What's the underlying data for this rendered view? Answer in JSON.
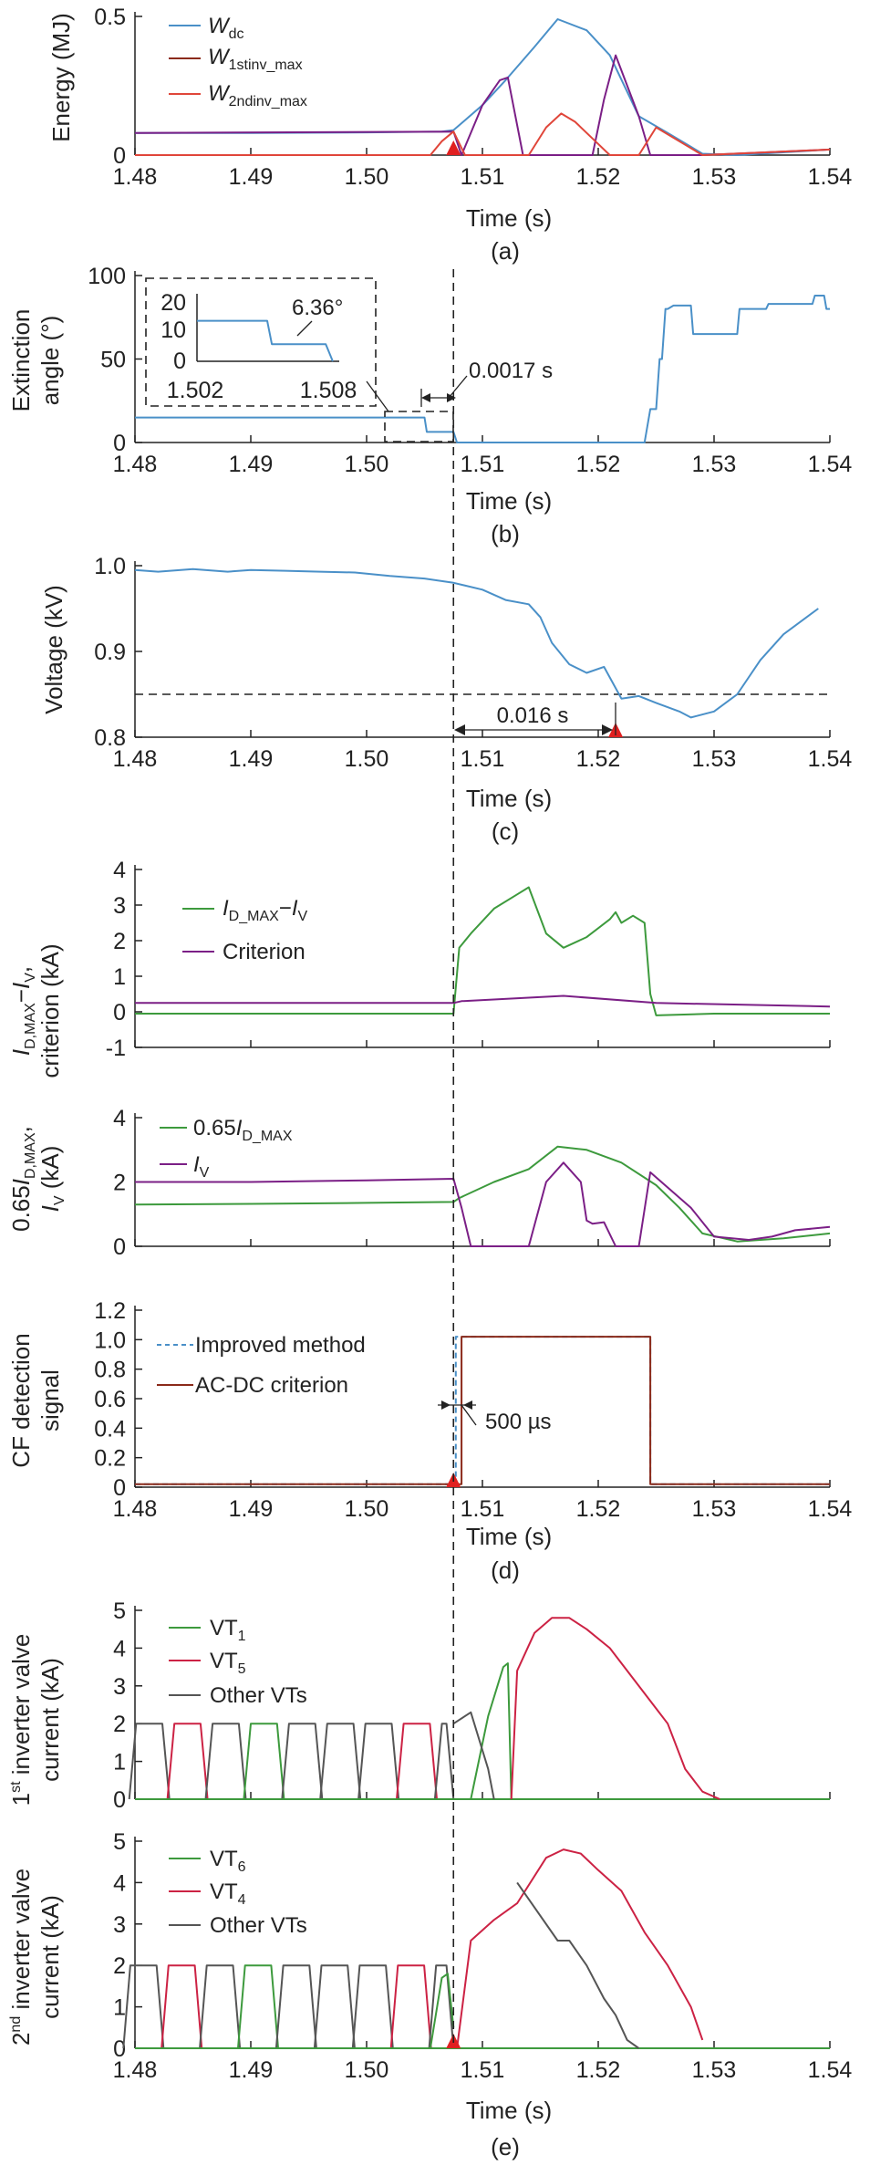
{
  "time_ticks": [
    "1.48",
    "1.49",
    "1.50",
    "1.51",
    "1.52",
    "1.53",
    "1.54"
  ],
  "time_label": "Time (s)",
  "colors": {
    "blue": "#4a90c8",
    "darkred": "#8b2a1a",
    "red": "#e0463a",
    "purple": "#7b1f86",
    "green": "#3d9a3d",
    "crimson": "#cc2244",
    "gray": "#555555",
    "marker": "#e02020"
  },
  "chart_data": [
    {
      "id": "a",
      "type": "line",
      "caption": "(a)",
      "ylabel": "Energy (MJ)",
      "xlabel": "Time (s)",
      "xlim": [
        1.48,
        1.54
      ],
      "ylim": [
        0,
        0.5
      ],
      "yticks": [
        "0",
        "0.5"
      ],
      "series": [
        {
          "name": "W",
          "sub": "dc",
          "color": "#4a90c8",
          "x": [
            1.48,
            1.49,
            1.5,
            1.5065,
            1.5075,
            1.51,
            1.512,
            1.5145,
            1.5165,
            1.519,
            1.521,
            1.5235,
            1.526,
            1.528,
            1.529,
            1.532,
            1.54
          ],
          "y": [
            0.08,
            0.08,
            0.082,
            0.085,
            0.09,
            0.18,
            0.27,
            0.39,
            0.49,
            0.45,
            0.36,
            0.14,
            0.08,
            0.03,
            0.005,
            0.0,
            0.02
          ]
        },
        {
          "name": "W",
          "sub": "1stinv_max",
          "color": "#7b1f86",
          "x": [
            1.48,
            1.5075,
            1.5082,
            1.51,
            1.5115,
            1.5122,
            1.5135,
            1.518,
            1.5195,
            1.5205,
            1.5215,
            1.5235,
            1.5245,
            1.526,
            1.529,
            1.54
          ],
          "y": [
            0.08,
            0.085,
            0.0,
            0.18,
            0.27,
            0.28,
            0.0,
            0.0,
            0.0,
            0.2,
            0.36,
            0.14,
            0.0,
            0.0,
            0.0,
            0.02
          ]
        },
        {
          "name": "W",
          "sub": "2ndinv_max",
          "color": "#e0463a",
          "x": [
            1.48,
            1.5055,
            1.5065,
            1.5075,
            1.5085,
            1.514,
            1.5155,
            1.5168,
            1.518,
            1.5195,
            1.521,
            1.5235,
            1.525,
            1.529,
            1.54
          ],
          "y": [
            0.0,
            0.0,
            0.05,
            0.085,
            0.0,
            0.0,
            0.1,
            0.15,
            0.12,
            0.06,
            0.0,
            0.0,
            0.1,
            0.0,
            0.02
          ]
        }
      ],
      "legend": [
        "W_dc",
        "W_1stinv_max",
        "W_2ndinv_max"
      ],
      "marker_x": 1.5075
    },
    {
      "id": "b",
      "type": "line",
      "caption": "(b)",
      "ylabel": [
        "Extinction",
        "angle (°)"
      ],
      "xlabel": "Time (s)",
      "xlim": [
        1.48,
        1.54
      ],
      "ylim": [
        0,
        100
      ],
      "yticks": [
        "0",
        "50",
        "100"
      ],
      "series": [
        {
          "name": "Extinction angle",
          "color": "#4a90c8",
          "x": [
            1.48,
            1.505,
            1.5052,
            1.5075,
            1.5078,
            1.524,
            1.5245,
            1.525,
            1.5253,
            1.5255,
            1.5258,
            1.526,
            1.5265,
            1.528,
            1.5282,
            1.532,
            1.5322,
            1.5345,
            1.5347,
            1.5385,
            1.5387,
            1.5395,
            1.5397,
            1.54
          ],
          "y": [
            15,
            15,
            6.36,
            6.36,
            0,
            0,
            20,
            20,
            50,
            50,
            80,
            80,
            82,
            82,
            65,
            65,
            80,
            80,
            83,
            83,
            88,
            88,
            80,
            80
          ]
        }
      ],
      "inset": {
        "yticks": [
          "20",
          "10",
          "0"
        ],
        "xticks": [
          "1.502",
          "1.508"
        ],
        "x": [
          1.502,
          1.505,
          1.5052,
          1.5075,
          1.5078
        ],
        "y": [
          15,
          15,
          6.36,
          6.36,
          0
        ],
        "label": "6.36°"
      },
      "annotation": "0.0017 s"
    },
    {
      "id": "c",
      "type": "line",
      "caption": "(c)",
      "ylabel": "Voltage (kV)",
      "xlabel": "Time (s)",
      "xlim": [
        1.48,
        1.54
      ],
      "ylim": [
        0.8,
        1.0
      ],
      "yticks": [
        "0.8",
        "0.9",
        "1.0"
      ],
      "threshold": 0.85,
      "series": [
        {
          "name": "Voltage",
          "color": "#4a90c8",
          "x": [
            1.48,
            1.482,
            1.485,
            1.488,
            1.49,
            1.493,
            1.496,
            1.499,
            1.502,
            1.505,
            1.5075,
            1.51,
            1.512,
            1.514,
            1.515,
            1.516,
            1.5175,
            1.519,
            1.5205,
            1.522,
            1.5235,
            1.525,
            1.527,
            1.528,
            1.53,
            1.532,
            1.534,
            1.536,
            1.539
          ],
          "y": [
            0.995,
            0.993,
            0.996,
            0.993,
            0.995,
            0.994,
            0.993,
            0.992,
            0.988,
            0.985,
            0.98,
            0.972,
            0.96,
            0.955,
            0.94,
            0.91,
            0.885,
            0.875,
            0.882,
            0.845,
            0.848,
            0.84,
            0.83,
            0.823,
            0.83,
            0.85,
            0.89,
            0.92,
            0.95
          ]
        }
      ],
      "annotation": "0.016 s",
      "marker_x": 1.5215
    },
    {
      "id": "d1",
      "type": "line",
      "ylabel": [
        "I",
        "criterion (kA)"
      ],
      "xlabel": "",
      "xlim": [
        1.48,
        1.54
      ],
      "ylim": [
        -1,
        4
      ],
      "yticks": [
        "-1",
        "0",
        "1",
        "2",
        "3",
        "4"
      ],
      "series": [
        {
          "name": "I_D_MAX−I_V",
          "color": "#3d9a3d",
          "x": [
            1.48,
            1.49,
            1.5,
            1.5075,
            1.508,
            1.509,
            1.511,
            1.513,
            1.514,
            1.5155,
            1.517,
            1.519,
            1.521,
            1.5215,
            1.522,
            1.523,
            1.524,
            1.5245,
            1.525,
            1.53,
            1.54
          ],
          "y": [
            -0.05,
            -0.05,
            -0.05,
            -0.05,
            1.8,
            2.2,
            2.9,
            3.3,
            3.5,
            2.2,
            1.8,
            2.1,
            2.6,
            2.8,
            2.5,
            2.7,
            2.5,
            0.5,
            -0.1,
            -0.05,
            -0.05
          ]
        },
        {
          "name": "Criterion",
          "color": "#7b1f86",
          "x": [
            1.48,
            1.5075,
            1.5082,
            1.517,
            1.525,
            1.54
          ],
          "y": [
            0.25,
            0.25,
            0.3,
            0.45,
            0.25,
            0.15
          ]
        }
      ],
      "legend": [
        "I_D_MAX−I_V",
        "Criterion"
      ]
    },
    {
      "id": "d2",
      "type": "line",
      "ylabel": [
        "0.65I",
        "I_V (kA)"
      ],
      "xlabel": "",
      "xlim": [
        1.48,
        1.54
      ],
      "ylim": [
        0,
        4
      ],
      "yticks": [
        "0",
        "2",
        "4"
      ],
      "series": [
        {
          "name": "0.65I_D_MAX",
          "color": "#3d9a3d",
          "x": [
            1.48,
            1.49,
            1.5,
            1.5075,
            1.508,
            1.511,
            1.514,
            1.5165,
            1.519,
            1.522,
            1.525,
            1.527,
            1.529,
            1.532,
            1.536,
            1.54
          ],
          "y": [
            1.3,
            1.32,
            1.35,
            1.38,
            1.5,
            2.0,
            2.4,
            3.1,
            3.0,
            2.6,
            1.9,
            1.2,
            0.4,
            0.15,
            0.25,
            0.4
          ]
        },
        {
          "name": "I_V",
          "color": "#7b1f86",
          "x": [
            1.48,
            1.49,
            1.5,
            1.5075,
            1.5082,
            1.509,
            1.514,
            1.5155,
            1.517,
            1.5185,
            1.519,
            1.5195,
            1.5205,
            1.5215,
            1.5225,
            1.5235,
            1.5245,
            1.528,
            1.53,
            1.533,
            1.535,
            1.537,
            1.54
          ],
          "y": [
            2.0,
            2.0,
            2.05,
            2.1,
            1.2,
            0.0,
            0.0,
            2.0,
            2.6,
            2.0,
            0.8,
            0.7,
            0.75,
            0.0,
            0.0,
            0.0,
            2.3,
            1.2,
            0.3,
            0.2,
            0.3,
            0.5,
            0.6
          ]
        }
      ],
      "legend": [
        "0.65I_D_MAX",
        "I_V"
      ]
    },
    {
      "id": "d3",
      "type": "line",
      "caption": "(d)",
      "ylabel": [
        "CF detection",
        "signal"
      ],
      "xlabel": "Time (s)",
      "xlim": [
        1.48,
        1.54
      ],
      "ylim": [
        0,
        1.2
      ],
      "yticks": [
        "0",
        "0.2",
        "0.4",
        "0.6",
        "0.8",
        "1.0",
        "1.2"
      ],
      "series": [
        {
          "name": "Improved method",
          "color": "#4a90c8",
          "dashed": true,
          "x": [
            1.48,
            1.5077,
            1.5077,
            1.5245,
            1.5245,
            1.54
          ],
          "y": [
            0.02,
            0.02,
            1.02,
            1.02,
            0.02,
            0.02
          ]
        },
        {
          "name": "AC-DC criterion",
          "color": "#8b2a1a",
          "x": [
            1.48,
            1.5082,
            1.5082,
            1.5245,
            1.5245,
            1.54
          ],
          "y": [
            0.02,
            0.02,
            1.02,
            1.02,
            0.02,
            0.02
          ]
        }
      ],
      "legend": [
        "Improved method",
        "AC-DC criterion"
      ],
      "annotation": "500 µs",
      "marker_x": 1.5075
    },
    {
      "id": "e1",
      "type": "line",
      "ylabel": [
        "1st inverter valve",
        "current (kA)"
      ],
      "xlabel": "",
      "xlim": [
        1.48,
        1.54
      ],
      "ylim": [
        0,
        5
      ],
      "yticks": [
        "0",
        "1",
        "2",
        "3",
        "4",
        "5"
      ],
      "pre_fault_level": 2.0,
      "series": [
        {
          "name": "VT_1",
          "color": "#3d9a3d",
          "x": [
            1.509,
            1.5105,
            1.5118,
            1.5122,
            1.5125
          ],
          "y": [
            0.0,
            2.2,
            3.5,
            3.6,
            0.0
          ]
        },
        {
          "name": "VT_5",
          "color": "#cc2244",
          "x": [
            1.5125,
            1.513,
            1.5145,
            1.516,
            1.5175,
            1.519,
            1.521,
            1.523,
            1.525,
            1.526,
            1.5275,
            1.529,
            1.5305
          ],
          "y": [
            0.0,
            3.4,
            4.4,
            4.8,
            4.8,
            4.5,
            4.0,
            3.2,
            2.4,
            2.0,
            0.8,
            0.2,
            0.0
          ]
        },
        {
          "name": "Other VTs",
          "color": "#555555",
          "x": [
            1.5075,
            1.509,
            1.5105,
            1.511
          ],
          "y": [
            2.0,
            2.3,
            0.8,
            0.0
          ]
        }
      ],
      "legend": [
        "VT_1",
        "VT_5",
        "Other VTs"
      ]
    },
    {
      "id": "e2",
      "type": "line",
      "caption": "(e)",
      "ylabel": [
        "2nd inverter valve",
        "current (kA)"
      ],
      "xlabel": "Time (s)",
      "xlim": [
        1.48,
        1.54
      ],
      "ylim": [
        0,
        5
      ],
      "yticks": [
        "0",
        "1",
        "2",
        "3",
        "4",
        "5"
      ],
      "pre_fault_level": 2.0,
      "series": [
        {
          "name": "VT_6",
          "color": "#3d9a3d",
          "x": [
            1.5055,
            1.5065,
            1.507,
            1.5075
          ],
          "y": [
            0.0,
            1.7,
            1.8,
            0.5
          ]
        },
        {
          "name": "VT_4",
          "color": "#cc2244",
          "x": [
            1.5078,
            1.509,
            1.511,
            1.513,
            1.5155,
            1.517,
            1.5185,
            1.52,
            1.522,
            1.524,
            1.526,
            1.528,
            1.529
          ],
          "y": [
            0.0,
            2.6,
            3.1,
            3.5,
            4.6,
            4.8,
            4.7,
            4.3,
            3.8,
            2.8,
            2.0,
            1.0,
            0.2
          ]
        },
        {
          "name": "Other VTs",
          "color": "#555555",
          "x": [
            1.513,
            1.5165,
            1.5175,
            1.519,
            1.5205,
            1.5215,
            1.5225,
            1.5235
          ],
          "y": [
            4.0,
            2.6,
            2.6,
            2.0,
            1.2,
            0.8,
            0.2,
            0.0
          ]
        }
      ],
      "legend": [
        "VT_6",
        "VT_4",
        "Other VTs"
      ],
      "marker_x": 1.5075
    }
  ]
}
